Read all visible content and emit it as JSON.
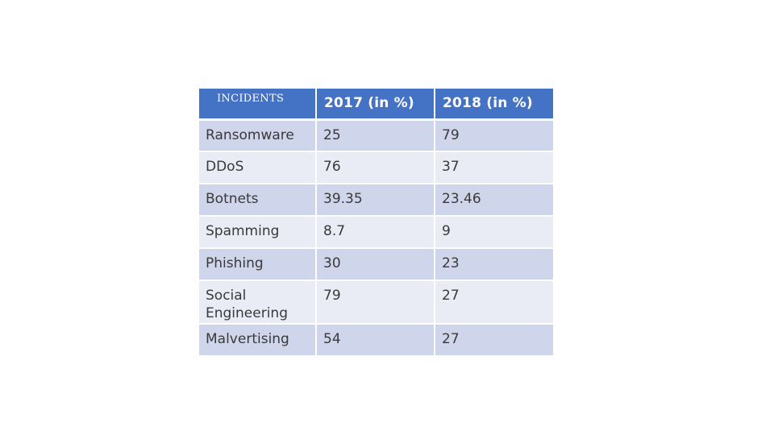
{
  "table": {
    "headers": [
      "INCIDENTS",
      "2017 (in %)",
      "2018 (in %)"
    ],
    "rows": [
      {
        "incident": "Ransomware",
        "y2017": "25",
        "y2018": "79"
      },
      {
        "incident": "DDoS",
        "y2017": "76",
        "y2018": "37"
      },
      {
        "incident": "Botnets",
        "y2017": "39.35",
        "y2018": "23.46"
      },
      {
        "incident": "Spamming",
        "y2017": "8.7",
        "y2018": "9"
      },
      {
        "incident": "Phishing",
        "y2017": "30",
        "y2018": "23"
      },
      {
        "incident": "Social Engineering",
        "y2017": "79",
        "y2018": "27"
      },
      {
        "incident": "Malvertising",
        "y2017": "54",
        "y2018": "27"
      }
    ]
  },
  "colors": {
    "header_bg": "#4472c4",
    "row_dark": "#cfd5ea",
    "row_light": "#e9ebf5",
    "text": "#3a3a3a"
  }
}
